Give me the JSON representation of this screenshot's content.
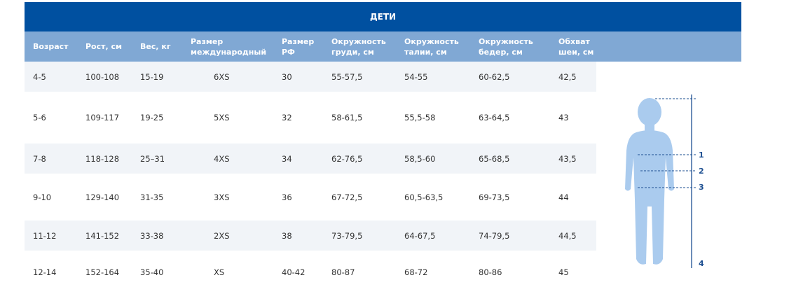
{
  "title": "ДЕТИ",
  "table": {
    "headers": [
      "Возраст",
      "Рост, см",
      "Вес, кг",
      "Размер международный",
      "Размер РФ",
      "Окружность груди, см",
      "Окружность талии, см",
      "Окружность бедер, см",
      "Обхват шеи, см"
    ],
    "rows": [
      [
        "4-5",
        "100-108",
        "15-19",
        "6XS",
        "30",
        "55-57,5",
        "54-55",
        "60-62,5",
        "42,5"
      ],
      [
        "5-6",
        "109-117",
        "19-25",
        "5XS",
        "32",
        "58-61,5",
        "55,5-58",
        "63-64,5",
        "43"
      ],
      [
        "7-8",
        "118-128",
        "25–31",
        "4XS",
        "34",
        "62-76,5",
        "58,5-60",
        "65-68,5",
        "43,5"
      ],
      [
        "9-10",
        "129-140",
        "31-35",
        "3XS",
        "36",
        "67-72,5",
        "60,5-63,5",
        "69-73,5",
        "44"
      ],
      [
        "11-12",
        "141-152",
        "33-38",
        "2XS",
        "38",
        "73-79,5",
        "64-67,5",
        "74-79,5",
        "44,5"
      ],
      [
        "12-14",
        "152-164",
        "35-40",
        "XS",
        "40-42",
        "80-87",
        "68-72",
        "80-86",
        "45"
      ]
    ]
  },
  "figure": {
    "labels": [
      "1",
      "2",
      "3",
      "4"
    ]
  }
}
